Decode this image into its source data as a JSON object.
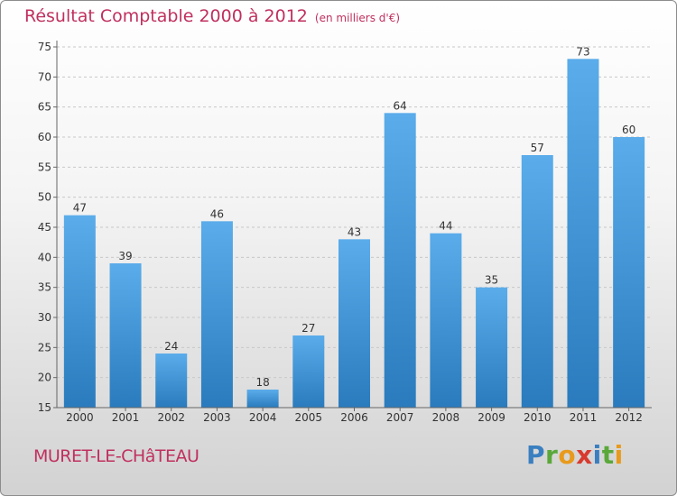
{
  "page": {
    "title": "Résultat Comptable 2000 à 2012",
    "subtitle": "(en milliers d'€)",
    "location": "MURET-LE-CHâTEAU"
  },
  "brand": {
    "letters": [
      {
        "char": "P",
        "color": "#3a7fc0"
      },
      {
        "char": "r",
        "color": "#5aa83a"
      },
      {
        "char": "o",
        "color": "#e89a1c"
      },
      {
        "char": "x",
        "color": "#d83a2e"
      },
      {
        "char": "i",
        "color": "#3a7fc0"
      },
      {
        "char": "t",
        "color": "#5aa83a"
      },
      {
        "char": "i",
        "color": "#e89a1c"
      }
    ]
  },
  "chart_data": {
    "type": "bar",
    "title": "Résultat Comptable 2000 à 2012",
    "subtitle": "(en milliers d'€)",
    "xlabel": "",
    "ylabel": "",
    "categories": [
      "2000",
      "2001",
      "2002",
      "2003",
      "2004",
      "2005",
      "2006",
      "2007",
      "2008",
      "2009",
      "2010",
      "2011",
      "2012"
    ],
    "values": [
      47,
      39,
      24,
      46,
      18,
      27,
      43,
      64,
      44,
      35,
      57,
      73,
      60
    ],
    "ylim": [
      15,
      75
    ],
    "yticks": [
      15,
      20,
      25,
      30,
      35,
      40,
      45,
      50,
      55,
      60,
      65,
      70,
      75
    ],
    "grid": "horizontal dashed",
    "colors": {
      "bar_light": "#5aacea",
      "bar_dark": "#2a7bbd",
      "text": "#333333",
      "title": "#c0305e"
    }
  }
}
